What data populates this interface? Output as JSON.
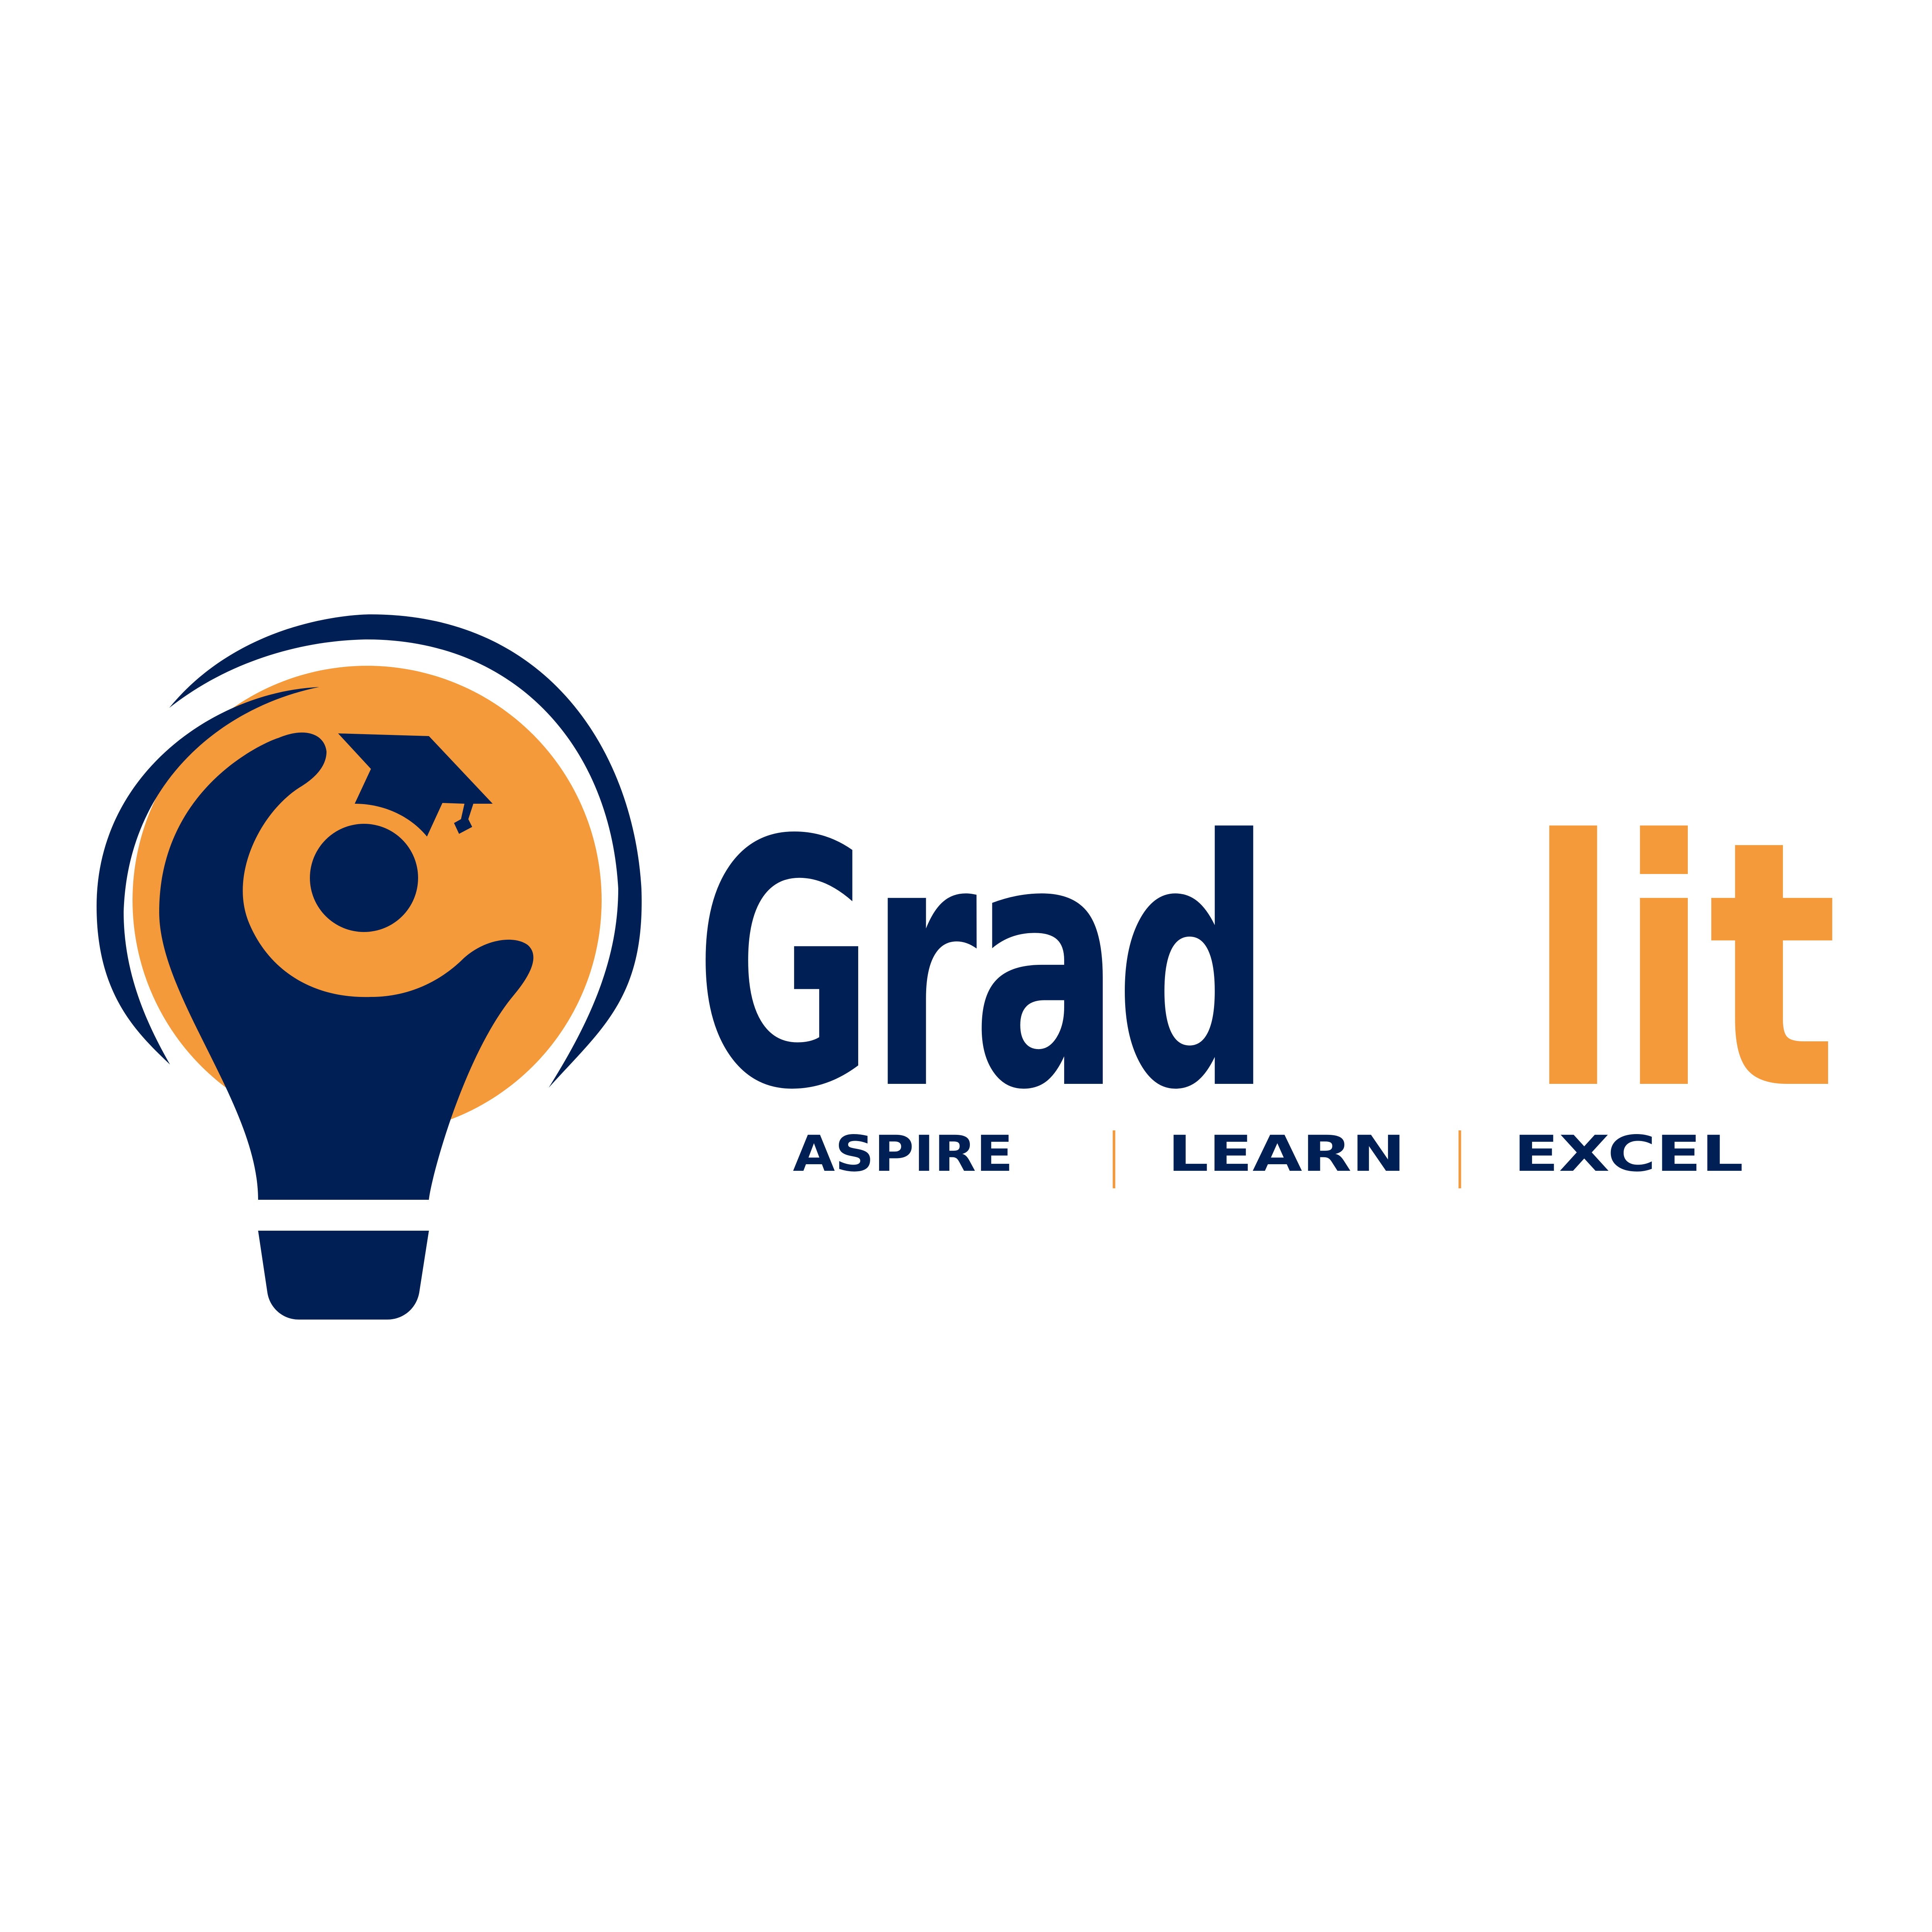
{
  "brand": {
    "name_part1": "Grad",
    "name_part2": "lit",
    "tagline": {
      "word1": "ASPIRE",
      "word2": "LEARN",
      "word3": "EXCEL",
      "separator": "|"
    }
  },
  "colors": {
    "navy": "#001F55",
    "orange": "#F49A3A",
    "background": "#FFFFFF"
  },
  "logo_mark": {
    "icon": "lightbulb-graduate-icon",
    "elements": [
      "orange-circle",
      "swoosh-arcs",
      "person-figure",
      "graduation-cap",
      "bulb-base"
    ]
  }
}
